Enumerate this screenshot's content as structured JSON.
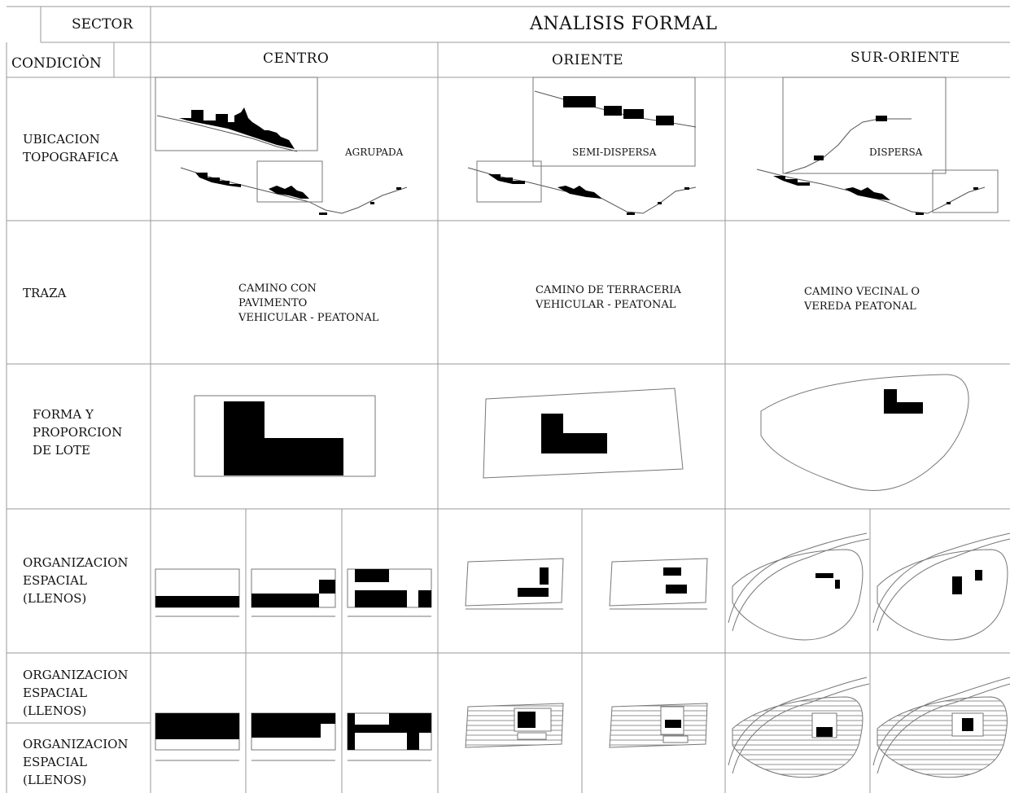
{
  "header": {
    "sector_label": "SECTOR",
    "condition_label": "CONDICIÒN",
    "title": "ANALISIS FORMAL",
    "columns": [
      "CENTRO",
      "ORIENTE",
      "SUR-ORIENTE"
    ]
  },
  "rows": {
    "ubicacion": {
      "label_lines": [
        "UBICACION",
        "TOPOGRAFICA"
      ],
      "cells": [
        "AGRUPADA",
        "SEMI-DISPERSA",
        "DISPERSA"
      ]
    },
    "traza": {
      "label": "TRAZA",
      "cells": [
        [
          "CAMINO CON",
          "PAVIMENTO",
          "VEHICULAR - PEATONAL"
        ],
        [
          "CAMINO DE TERRACERIA",
          "VEHICULAR - PEATONAL"
        ],
        [
          "CAMINO VECINAL O",
          "VEREDA PEATONAL"
        ]
      ]
    },
    "forma": {
      "label_lines": [
        "FORMA Y",
        "PROPORCION",
        "DE LOTE"
      ]
    },
    "organizacion_llenos": {
      "label_lines": [
        "ORGANIZACION",
        "ESPACIAL",
        "(LLENOS)"
      ]
    },
    "organizacion_llenos_2": {
      "label_lines_a": [
        "ORGANIZACION",
        "ESPACIAL",
        "(LLENOS)"
      ],
      "label_lines_b": [
        "ORGANIZACION",
        "ESPACIAL",
        "(LLENOS)"
      ]
    }
  }
}
